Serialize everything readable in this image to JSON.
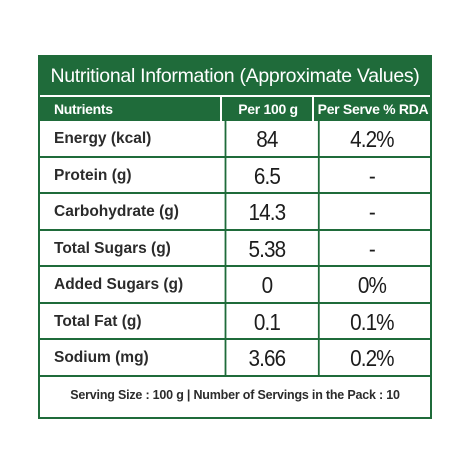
{
  "title": "Nutritional Information (Approximate Values)",
  "header": {
    "nutrients": "Nutrients",
    "per100": "Per 100 g",
    "rda": "Per Serve % RDA"
  },
  "rows": [
    {
      "name": "Energy (kcal)",
      "per100": "84",
      "rda": "4.2%"
    },
    {
      "name": "Protein (g)",
      "per100": "6.5",
      "rda": "-"
    },
    {
      "name": "Carbohydrate (g)",
      "per100": "14.3",
      "rda": "-"
    },
    {
      "name": "Total Sugars (g)",
      "per100": "5.38",
      "rda": "-"
    },
    {
      "name": "Added Sugars (g)",
      "per100": "0",
      "rda": "0%"
    },
    {
      "name": "Total Fat (g)",
      "per100": "0.1",
      "rda": "0.1%"
    },
    {
      "name": "Sodium (mg)",
      "per100": "3.66",
      "rda": "0.2%"
    }
  ],
  "footer": "Serving Size : 100 g | Number of Servings in the Pack : 10",
  "colors": {
    "brand_green": "#1f6b3a",
    "text": "#2b2b2b",
    "background": "#ffffff"
  }
}
